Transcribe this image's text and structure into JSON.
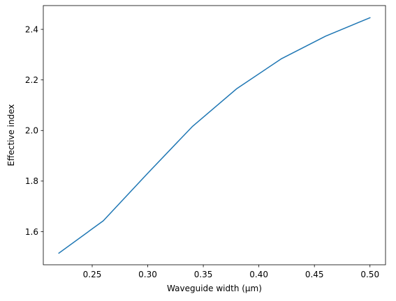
{
  "chart_data": {
    "type": "line",
    "title": "",
    "xlabel": "Waveguide width (μm)",
    "ylabel": "Effective index",
    "xlim": [
      0.206,
      0.514
    ],
    "ylim": [
      1.469,
      2.494
    ],
    "grid": false,
    "legend": "none",
    "x": [
      0.22,
      0.26,
      0.3,
      0.34,
      0.38,
      0.42,
      0.46,
      0.5
    ],
    "series": [
      {
        "color": "#1f77b4",
        "values": [
          1.515,
          1.643,
          1.831,
          2.015,
          2.165,
          2.283,
          2.373,
          2.446
        ]
      }
    ],
    "xticks": [
      0.25,
      0.3,
      0.35,
      0.4,
      0.45,
      0.5
    ],
    "xtick_labels": [
      "0.25",
      "0.30",
      "0.35",
      "0.40",
      "0.45",
      "0.50"
    ],
    "yticks": [
      1.6,
      1.8,
      2.0,
      2.2,
      2.4
    ],
    "ytick_labels": [
      "1.6",
      "1.8",
      "2.0",
      "2.2",
      "2.4"
    ]
  }
}
